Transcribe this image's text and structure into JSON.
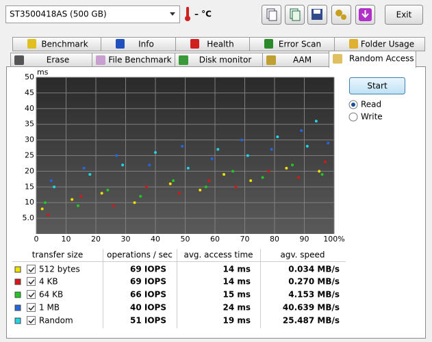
{
  "toolbar": {
    "drive": "ST3500418AS (500 GB)",
    "temperature": "– °C",
    "exit": "Exit"
  },
  "tabs": {
    "row1": [
      "Benchmark",
      "Info",
      "Health",
      "Error Scan",
      "Folder Usage"
    ],
    "row2": [
      "Erase",
      "File Benchmark",
      "Disk monitor",
      "AAM",
      "Random Access"
    ]
  },
  "chart": {
    "type": "scatter",
    "y_label": "ms",
    "xlim": [
      0,
      100
    ],
    "ylim": [
      0,
      50
    ],
    "xticks": [
      0,
      10,
      20,
      30,
      40,
      50,
      60,
      70,
      80,
      90,
      {
        "value": 100,
        "label": "100%"
      }
    ],
    "yticks": [
      {
        "value": 5,
        "label": "5.0"
      },
      10,
      15,
      20,
      25,
      30,
      35,
      40,
      45,
      50
    ],
    "grid": true,
    "series": [
      {
        "color": "#f0e000",
        "x": [
          2,
          12,
          22,
          33,
          45,
          55,
          63,
          72,
          84,
          95
        ],
        "values": [
          8,
          11,
          13,
          10,
          16,
          14,
          19,
          17,
          21,
          20
        ]
      },
      {
        "color": "#d81818",
        "x": [
          4,
          15,
          26,
          37,
          48,
          58,
          67,
          78,
          88,
          97
        ],
        "values": [
          6,
          12,
          9,
          15,
          13,
          17,
          15,
          20,
          18,
          23
        ]
      },
      {
        "color": "#22c822",
        "x": [
          3,
          14,
          24,
          35,
          46,
          57,
          66,
          76,
          86,
          96
        ],
        "values": [
          10,
          9,
          14,
          12,
          17,
          15,
          20,
          18,
          22,
          19
        ]
      },
      {
        "color": "#2466e0",
        "x": [
          5,
          16,
          27,
          38,
          49,
          59,
          69,
          79,
          89,
          98
        ],
        "values": [
          17,
          21,
          25,
          22,
          28,
          24,
          30,
          27,
          33,
          29
        ]
      },
      {
        "color": "#22d4e4",
        "x": [
          6,
          18,
          29,
          40,
          51,
          61,
          71,
          81,
          91,
          94
        ],
        "values": [
          15,
          19,
          22,
          26,
          21,
          27,
          25,
          31,
          28,
          36
        ]
      }
    ]
  },
  "controls": {
    "start": "Start",
    "read": "Read",
    "write": "Write",
    "read_checked": true
  },
  "table": {
    "headers": [
      "transfer size",
      "operations / sec",
      "avg. access time",
      "agv. speed"
    ],
    "rows": [
      [
        "512 bytes",
        "69 IOPS",
        "14 ms",
        "0.034 MB/s"
      ],
      [
        "4 KB",
        "69 IOPS",
        "14 ms",
        "0.270 MB/s"
      ],
      [
        "64 KB",
        "66 IOPS",
        "15 ms",
        "4.153 MB/s"
      ],
      [
        "1 MB",
        "40 IOPS",
        "24 ms",
        "40.639 MB/s"
      ],
      [
        "Random",
        "51 IOPS",
        "19 ms",
        "25.487 MB/s"
      ]
    ]
  }
}
